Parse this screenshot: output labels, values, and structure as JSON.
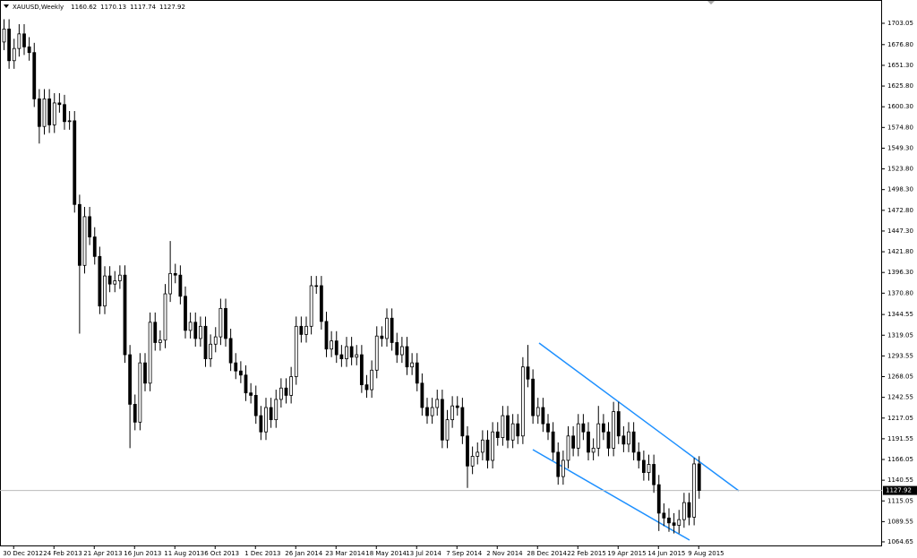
{
  "chart_data": {
    "type": "candlestick",
    "title": "XAUUSD,Weekly",
    "categories": [
      null,
      null,
      "30 Dec 2012",
      null,
      null,
      null,
      null,
      null,
      null,
      null,
      "24 Feb 2013",
      null,
      null,
      null,
      null,
      null,
      null,
      null,
      "21 Apr 2013",
      null,
      null,
      null,
      null,
      null,
      null,
      null,
      "16 Jun 2013",
      null,
      null,
      null,
      null,
      null,
      null,
      null,
      "11 Aug 2013",
      null,
      null,
      null,
      null,
      null,
      null,
      null,
      "6 Oct 2013",
      null,
      null,
      null,
      null,
      null,
      null,
      null,
      "1 Dec 2013",
      null,
      null,
      null,
      null,
      null,
      null,
      null,
      "26 Jan 2014",
      null,
      null,
      null,
      null,
      null,
      null,
      null,
      "23 Mar 2014",
      null,
      null,
      null,
      null,
      null,
      null,
      null,
      "18 May 2014",
      null,
      null,
      null,
      null,
      null,
      null,
      null,
      "13 Jul 2014",
      null,
      null,
      null,
      null,
      null,
      null,
      null,
      "7 Sep 2014",
      null,
      null,
      null,
      null,
      null,
      null,
      null,
      "2 Nov 2014",
      null,
      null,
      null,
      null,
      null,
      null,
      null,
      "28 Dec 2014",
      null,
      null,
      null,
      null,
      null,
      null,
      null,
      "22 Feb 2015",
      null,
      null,
      null,
      null,
      null,
      null,
      null,
      "19 Apr 2015",
      null,
      null,
      null,
      null,
      null,
      null,
      null,
      "14 Jun 2015",
      null,
      null,
      null,
      null,
      null,
      null,
      null,
      "9 Aug 2015"
    ],
    "open": [
      1680,
      1696,
      1657,
      1672,
      1690,
      1674,
      1667,
      1610,
      1576,
      1610,
      1578,
      1605,
      1603,
      1582,
      1583,
      1480,
      1405,
      1465,
      1440,
      1416,
      1355,
      1392,
      1382,
      1386,
      1393,
      1295,
      1234,
      1212,
      1285,
      1260,
      1335,
      1310,
      1313,
      1370,
      1395,
      1393,
      1367,
      1325,
      1335,
      1315,
      1330,
      1290,
      1308,
      1317,
      1352,
      1315,
      1285,
      1275,
      1270,
      1248,
      1245,
      1220,
      1200,
      1230,
      1215,
      1240,
      1254,
      1245,
      1268,
      1330,
      1320,
      1330,
      1380,
      1380,
      1336,
      1302,
      1312,
      1295,
      1290,
      1305,
      1292,
      1295,
      1258,
      1252,
      1276,
      1318,
      1315,
      1340,
      1310,
      1295,
      1305,
      1280,
      1285,
      1260,
      1230,
      1220,
      1230,
      1240,
      1190,
      1215,
      1232,
      1230,
      1195,
      1158,
      1170,
      1175,
      1190,
      1165,
      1200,
      1193,
      1220,
      1190,
      1210,
      1195,
      1280,
      1265,
      1220,
      1230,
      1210,
      1200,
      1175,
      1145,
      1165,
      1195,
      1180,
      1210,
      1200,
      1175,
      1180,
      1210,
      1200,
      1180,
      1225,
      1195,
      1185,
      1200,
      1175,
      1165,
      1150,
      1160,
      1135,
      1100,
      1094,
      1088,
      1085,
      1092,
      1113,
      1095,
      1160.62
    ],
    "high": [
      1708,
      1708,
      1684,
      1702,
      1702,
      1686,
      1679,
      1622,
      1622,
      1622,
      1617,
      1617,
      1615,
      1595,
      1595,
      1492,
      1477,
      1477,
      1452,
      1428,
      1404,
      1404,
      1398,
      1405,
      1405,
      1307,
      1246,
      1297,
      1297,
      1347,
      1347,
      1325,
      1382,
      1435,
      1407,
      1405,
      1379,
      1347,
      1347,
      1342,
      1342,
      1320,
      1329,
      1364,
      1364,
      1327,
      1297,
      1287,
      1282,
      1260,
      1257,
      1232,
      1242,
      1242,
      1252,
      1266,
      1266,
      1280,
      1342,
      1342,
      1342,
      1392,
      1392,
      1392,
      1348,
      1324,
      1324,
      1307,
      1317,
      1317,
      1307,
      1307,
      1270,
      1288,
      1330,
      1330,
      1352,
      1352,
      1322,
      1317,
      1317,
      1297,
      1297,
      1272,
      1242,
      1242,
      1252,
      1252,
      1227,
      1244,
      1244,
      1242,
      1207,
      1182,
      1187,
      1202,
      1202,
      1212,
      1212,
      1232,
      1232,
      1222,
      1222,
      1292,
      1307,
      1277,
      1242,
      1242,
      1222,
      1212,
      1187,
      1177,
      1207,
      1207,
      1222,
      1222,
      1212,
      1192,
      1232,
      1222,
      1212,
      1237,
      1237,
      1207,
      1212,
      1212,
      1187,
      1177,
      1172,
      1172,
      1147,
      1112,
      1106,
      1100,
      1104,
      1125,
      1125,
      1168,
      1170.13
    ],
    "low": [
      1670,
      1647,
      1647,
      1662,
      1664,
      1657,
      1600,
      1555,
      1566,
      1568,
      1568,
      1593,
      1572,
      1572,
      1470,
      1321,
      1395,
      1430,
      1406,
      1345,
      1345,
      1372,
      1372,
      1376,
      1285,
      1180,
      1202,
      1202,
      1250,
      1250,
      1300,
      1300,
      1303,
      1360,
      1383,
      1357,
      1315,
      1315,
      1305,
      1305,
      1280,
      1280,
      1298,
      1307,
      1305,
      1275,
      1265,
      1260,
      1238,
      1235,
      1210,
      1190,
      1190,
      1205,
      1205,
      1230,
      1235,
      1235,
      1258,
      1310,
      1310,
      1320,
      1370,
      1326,
      1292,
      1292,
      1285,
      1280,
      1280,
      1282,
      1282,
      1248,
      1242,
      1242,
      1266,
      1305,
      1305,
      1300,
      1285,
      1285,
      1270,
      1270,
      1250,
      1220,
      1210,
      1210,
      1220,
      1180,
      1180,
      1205,
      1220,
      1185,
      1131,
      1148,
      1160,
      1165,
      1155,
      1155,
      1183,
      1183,
      1180,
      1180,
      1185,
      1185,
      1255,
      1210,
      1210,
      1200,
      1190,
      1165,
      1135,
      1135,
      1155,
      1170,
      1170,
      1190,
      1165,
      1165,
      1170,
      1190,
      1170,
      1170,
      1185,
      1175,
      1175,
      1165,
      1155,
      1140,
      1140,
      1125,
      1078,
      1084,
      1077,
      1075,
      1075,
      1082,
      1085,
      1085,
      1117.74
    ],
    "close": [
      1696,
      1657,
      1672,
      1690,
      1674,
      1667,
      1610,
      1576,
      1610,
      1578,
      1605,
      1603,
      1582,
      1583,
      1480,
      1405,
      1465,
      1440,
      1416,
      1355,
      1392,
      1382,
      1386,
      1393,
      1295,
      1234,
      1212,
      1285,
      1260,
      1335,
      1310,
      1313,
      1370,
      1395,
      1393,
      1367,
      1325,
      1335,
      1315,
      1330,
      1290,
      1308,
      1317,
      1352,
      1315,
      1285,
      1275,
      1270,
      1248,
      1245,
      1220,
      1200,
      1230,
      1215,
      1240,
      1254,
      1245,
      1268,
      1330,
      1320,
      1330,
      1380,
      1380,
      1336,
      1302,
      1312,
      1295,
      1290,
      1305,
      1292,
      1295,
      1258,
      1252,
      1276,
      1318,
      1315,
      1340,
      1310,
      1295,
      1305,
      1280,
      1285,
      1260,
      1230,
      1220,
      1230,
      1240,
      1190,
      1215,
      1232,
      1230,
      1195,
      1158,
      1170,
      1175,
      1190,
      1165,
      1200,
      1193,
      1220,
      1190,
      1210,
      1195,
      1280,
      1265,
      1220,
      1230,
      1210,
      1200,
      1175,
      1145,
      1165,
      1195,
      1180,
      1210,
      1200,
      1175,
      1180,
      1210,
      1200,
      1180,
      1225,
      1195,
      1185,
      1200,
      1175,
      1165,
      1150,
      1160,
      1135,
      1100,
      1094,
      1088,
      1085,
      1092,
      1113,
      1095,
      1160.62,
      1127.92
    ],
    "up_color": "#ffffff",
    "down_color": "#000000",
    "current_price": 1127.92,
    "ylim": [
      1059.1,
      1722.9
    ],
    "yticks": [
      1703.05,
      {
        "value": 1676.8,
        "label": "1676.80"
      },
      {
        "value": 1651.3,
        "label": "1651.30"
      },
      {
        "value": 1625.8,
        "label": "1625.80"
      },
      {
        "value": 1600.3,
        "label": "1600.30"
      },
      {
        "value": 1574.8,
        "label": "1574.80"
      },
      {
        "value": 1549.3,
        "label": "1549.30"
      },
      {
        "value": 1523.8,
        "label": "1523.80"
      },
      {
        "value": 1498.3,
        "label": "1498.30"
      },
      {
        "value": 1472.8,
        "label": "1472.80"
      },
      {
        "value": 1447.3,
        "label": "1447.30"
      },
      {
        "value": 1421.8,
        "label": "1421.80"
      },
      {
        "value": 1396.3,
        "label": "1396.30"
      },
      {
        "value": 1370.8,
        "label": "1370.80"
      },
      1344.55,
      1319.05,
      1293.55,
      1268.05,
      1242.55,
      1217.05,
      1191.55,
      1166.05,
      1140.55,
      1115.05,
      1089.55,
      1064.65
    ]
  }
}
